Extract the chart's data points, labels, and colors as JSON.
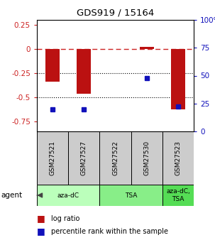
{
  "title": "GDS919 / 15164",
  "samples": [
    "GSM27521",
    "GSM27527",
    "GSM27522",
    "GSM27530",
    "GSM27523"
  ],
  "log_ratio": [
    -0.335,
    -0.46,
    0.0,
    0.025,
    -0.62
  ],
  "percentile_rank": [
    20,
    20,
    null,
    48,
    22
  ],
  "groups": [
    {
      "label": "aza-dC",
      "indices": [
        0,
        1
      ],
      "color": "#bbffbb"
    },
    {
      "label": "TSA",
      "indices": [
        2,
        3
      ],
      "color": "#88ee88"
    },
    {
      "label": "aza-dC,\nTSA",
      "indices": [
        4
      ],
      "color": "#55dd55"
    }
  ],
  "ylim_left": [
    -0.85,
    0.3
  ],
  "ylim_right": [
    0,
    100
  ],
  "yticks_left": [
    0.25,
    0.0,
    -0.25,
    -0.5,
    -0.75
  ],
  "yticks_right": [
    100,
    75,
    50,
    25,
    0
  ],
  "bar_color": "#bb1111",
  "dot_color": "#1111bb",
  "dashed_color": "#cc2222",
  "hline_color": "#000000",
  "bar_width": 0.45,
  "legend_labels": [
    "log ratio",
    "percentile rank within the sample"
  ],
  "sample_bg": "#cccccc"
}
